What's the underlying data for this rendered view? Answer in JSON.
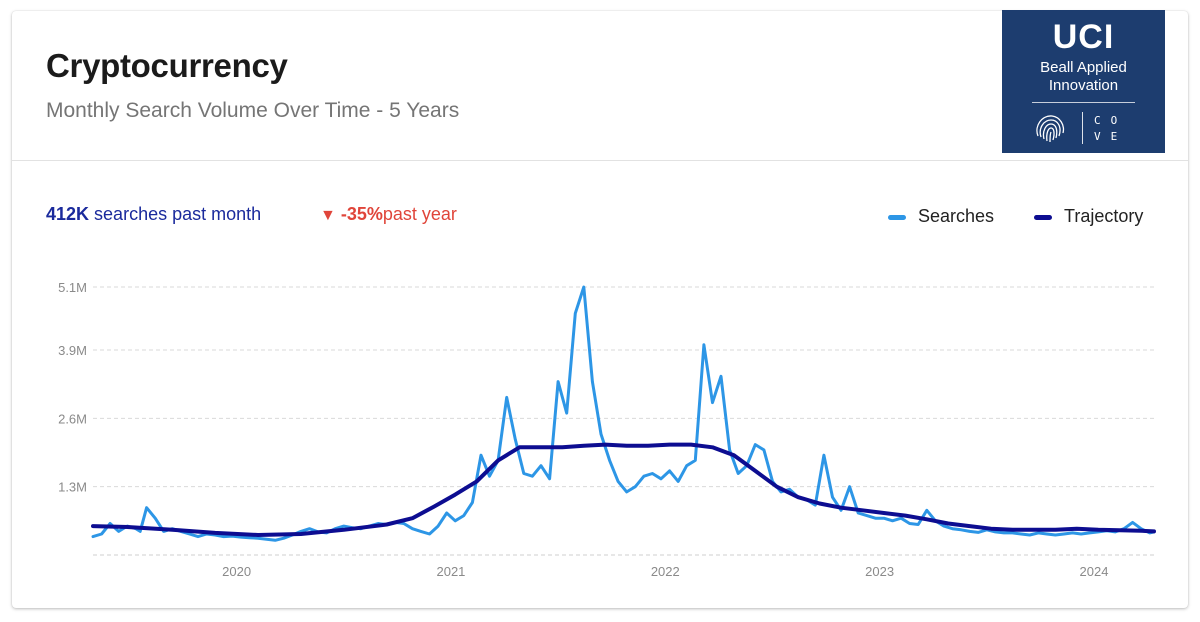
{
  "header": {
    "title": "Cryptocurrency",
    "subtitle": "Monthly Search Volume Over Time - 5 Years"
  },
  "logo": {
    "main": "UCI",
    "line1": "Beall Applied",
    "line2": "Innovation",
    "mark_letters": [
      "C",
      "O",
      "V",
      "E"
    ],
    "bg_color": "#1d3d6f"
  },
  "stats": {
    "value": "412K",
    "value_label": "searches past month",
    "change": "-35%",
    "change_label": "past year",
    "change_color": "#e0453a",
    "value_color": "#1a2a9c"
  },
  "chart_data": {
    "type": "line",
    "grid": "horizontal-dashed",
    "legend_position": "top-right",
    "xlim": [
      2019.33,
      2024.28
    ],
    "ylim": [
      0,
      5.1
    ],
    "y_ticks": [
      {
        "value": 1.3,
        "label": "1.3M"
      },
      {
        "value": 2.6,
        "label": "2.6M"
      },
      {
        "value": 3.9,
        "label": "3.9M"
      },
      {
        "value": 5.1,
        "label": "5.1M"
      }
    ],
    "x_ticks": [
      {
        "value": 2020,
        "label": "2020"
      },
      {
        "value": 2021,
        "label": "2021"
      },
      {
        "value": 2022,
        "label": "2022"
      },
      {
        "value": 2023,
        "label": "2023"
      },
      {
        "value": 2024,
        "label": "2024"
      }
    ],
    "series": [
      {
        "name": "Searches",
        "color": "#2d96e6",
        "points": [
          [
            2019.33,
            0.35
          ],
          [
            2019.37,
            0.4
          ],
          [
            2019.41,
            0.6
          ],
          [
            2019.45,
            0.45
          ],
          [
            2019.49,
            0.55
          ],
          [
            2019.53,
            0.5
          ],
          [
            2019.55,
            0.45
          ],
          [
            2019.58,
            0.9
          ],
          [
            2019.62,
            0.7
          ],
          [
            2019.66,
            0.45
          ],
          [
            2019.7,
            0.5
          ],
          [
            2019.74,
            0.45
          ],
          [
            2019.78,
            0.4
          ],
          [
            2019.82,
            0.35
          ],
          [
            2019.86,
            0.4
          ],
          [
            2019.9,
            0.38
          ],
          [
            2019.94,
            0.35
          ],
          [
            2019.98,
            0.36
          ],
          [
            2020.02,
            0.34
          ],
          [
            2020.06,
            0.33
          ],
          [
            2020.1,
            0.32
          ],
          [
            2020.14,
            0.3
          ],
          [
            2020.18,
            0.28
          ],
          [
            2020.22,
            0.32
          ],
          [
            2020.26,
            0.38
          ],
          [
            2020.3,
            0.45
          ],
          [
            2020.34,
            0.5
          ],
          [
            2020.38,
            0.44
          ],
          [
            2020.42,
            0.42
          ],
          [
            2020.46,
            0.5
          ],
          [
            2020.5,
            0.55
          ],
          [
            2020.54,
            0.52
          ],
          [
            2020.58,
            0.5
          ],
          [
            2020.62,
            0.55
          ],
          [
            2020.66,
            0.6
          ],
          [
            2020.7,
            0.58
          ],
          [
            2020.74,
            0.62
          ],
          [
            2020.78,
            0.6
          ],
          [
            2020.82,
            0.5
          ],
          [
            2020.86,
            0.45
          ],
          [
            2020.9,
            0.4
          ],
          [
            2020.94,
            0.55
          ],
          [
            2020.98,
            0.8
          ],
          [
            2021.02,
            0.65
          ],
          [
            2021.06,
            0.75
          ],
          [
            2021.1,
            1.0
          ],
          [
            2021.14,
            1.9
          ],
          [
            2021.18,
            1.5
          ],
          [
            2021.22,
            1.8
          ],
          [
            2021.26,
            3.0
          ],
          [
            2021.3,
            2.2
          ],
          [
            2021.34,
            1.55
          ],
          [
            2021.38,
            1.5
          ],
          [
            2021.42,
            1.7
          ],
          [
            2021.46,
            1.45
          ],
          [
            2021.5,
            3.3
          ],
          [
            2021.54,
            2.7
          ],
          [
            2021.58,
            4.6
          ],
          [
            2021.62,
            5.1
          ],
          [
            2021.66,
            3.3
          ],
          [
            2021.7,
            2.3
          ],
          [
            2021.74,
            1.8
          ],
          [
            2021.78,
            1.4
          ],
          [
            2021.82,
            1.2
          ],
          [
            2021.86,
            1.3
          ],
          [
            2021.9,
            1.5
          ],
          [
            2021.94,
            1.55
          ],
          [
            2021.98,
            1.45
          ],
          [
            2022.02,
            1.6
          ],
          [
            2022.06,
            1.4
          ],
          [
            2022.1,
            1.7
          ],
          [
            2022.14,
            1.8
          ],
          [
            2022.18,
            4.0
          ],
          [
            2022.22,
            2.9
          ],
          [
            2022.26,
            3.4
          ],
          [
            2022.3,
            2.0
          ],
          [
            2022.34,
            1.55
          ],
          [
            2022.38,
            1.7
          ],
          [
            2022.42,
            2.1
          ],
          [
            2022.46,
            2.0
          ],
          [
            2022.5,
            1.4
          ],
          [
            2022.54,
            1.2
          ],
          [
            2022.58,
            1.25
          ],
          [
            2022.62,
            1.1
          ],
          [
            2022.66,
            1.05
          ],
          [
            2022.7,
            0.95
          ],
          [
            2022.74,
            1.9
          ],
          [
            2022.78,
            1.1
          ],
          [
            2022.82,
            0.85
          ],
          [
            2022.86,
            1.3
          ],
          [
            2022.9,
            0.8
          ],
          [
            2022.94,
            0.75
          ],
          [
            2022.98,
            0.7
          ],
          [
            2023.02,
            0.7
          ],
          [
            2023.06,
            0.65
          ],
          [
            2023.1,
            0.7
          ],
          [
            2023.14,
            0.6
          ],
          [
            2023.18,
            0.58
          ],
          [
            2023.22,
            0.85
          ],
          [
            2023.26,
            0.65
          ],
          [
            2023.3,
            0.55
          ],
          [
            2023.34,
            0.5
          ],
          [
            2023.38,
            0.48
          ],
          [
            2023.42,
            0.45
          ],
          [
            2023.46,
            0.43
          ],
          [
            2023.5,
            0.48
          ],
          [
            2023.54,
            0.44
          ],
          [
            2023.58,
            0.42
          ],
          [
            2023.62,
            0.42
          ],
          [
            2023.66,
            0.4
          ],
          [
            2023.7,
            0.38
          ],
          [
            2023.74,
            0.42
          ],
          [
            2023.78,
            0.4
          ],
          [
            2023.82,
            0.38
          ],
          [
            2023.86,
            0.4
          ],
          [
            2023.9,
            0.42
          ],
          [
            2023.94,
            0.4
          ],
          [
            2023.98,
            0.42
          ],
          [
            2024.02,
            0.44
          ],
          [
            2024.06,
            0.46
          ],
          [
            2024.1,
            0.44
          ],
          [
            2024.14,
            0.5
          ],
          [
            2024.18,
            0.62
          ],
          [
            2024.22,
            0.5
          ],
          [
            2024.26,
            0.42
          ],
          [
            2024.28,
            0.44
          ]
        ]
      },
      {
        "name": "Trajectory",
        "color": "#0d0d91",
        "points": [
          [
            2019.33,
            0.55
          ],
          [
            2019.5,
            0.53
          ],
          [
            2019.7,
            0.48
          ],
          [
            2019.9,
            0.42
          ],
          [
            2020.1,
            0.38
          ],
          [
            2020.3,
            0.4
          ],
          [
            2020.5,
            0.48
          ],
          [
            2020.7,
            0.58
          ],
          [
            2020.82,
            0.7
          ],
          [
            2020.92,
            0.92
          ],
          [
            2021.02,
            1.15
          ],
          [
            2021.12,
            1.4
          ],
          [
            2021.22,
            1.8
          ],
          [
            2021.32,
            2.05
          ],
          [
            2021.42,
            2.05
          ],
          [
            2021.52,
            2.05
          ],
          [
            2021.62,
            2.08
          ],
          [
            2021.72,
            2.1
          ],
          [
            2021.82,
            2.08
          ],
          [
            2021.92,
            2.08
          ],
          [
            2022.02,
            2.1
          ],
          [
            2022.12,
            2.1
          ],
          [
            2022.22,
            2.05
          ],
          [
            2022.32,
            1.9
          ],
          [
            2022.42,
            1.6
          ],
          [
            2022.52,
            1.3
          ],
          [
            2022.62,
            1.1
          ],
          [
            2022.72,
            0.98
          ],
          [
            2022.82,
            0.9
          ],
          [
            2022.92,
            0.85
          ],
          [
            2023.02,
            0.8
          ],
          [
            2023.12,
            0.75
          ],
          [
            2023.22,
            0.68
          ],
          [
            2023.32,
            0.6
          ],
          [
            2023.42,
            0.55
          ],
          [
            2023.52,
            0.5
          ],
          [
            2023.62,
            0.48
          ],
          [
            2023.72,
            0.48
          ],
          [
            2023.82,
            0.48
          ],
          [
            2023.92,
            0.5
          ],
          [
            2024.02,
            0.48
          ],
          [
            2024.12,
            0.47
          ],
          [
            2024.22,
            0.46
          ],
          [
            2024.28,
            0.45
          ]
        ]
      }
    ]
  }
}
